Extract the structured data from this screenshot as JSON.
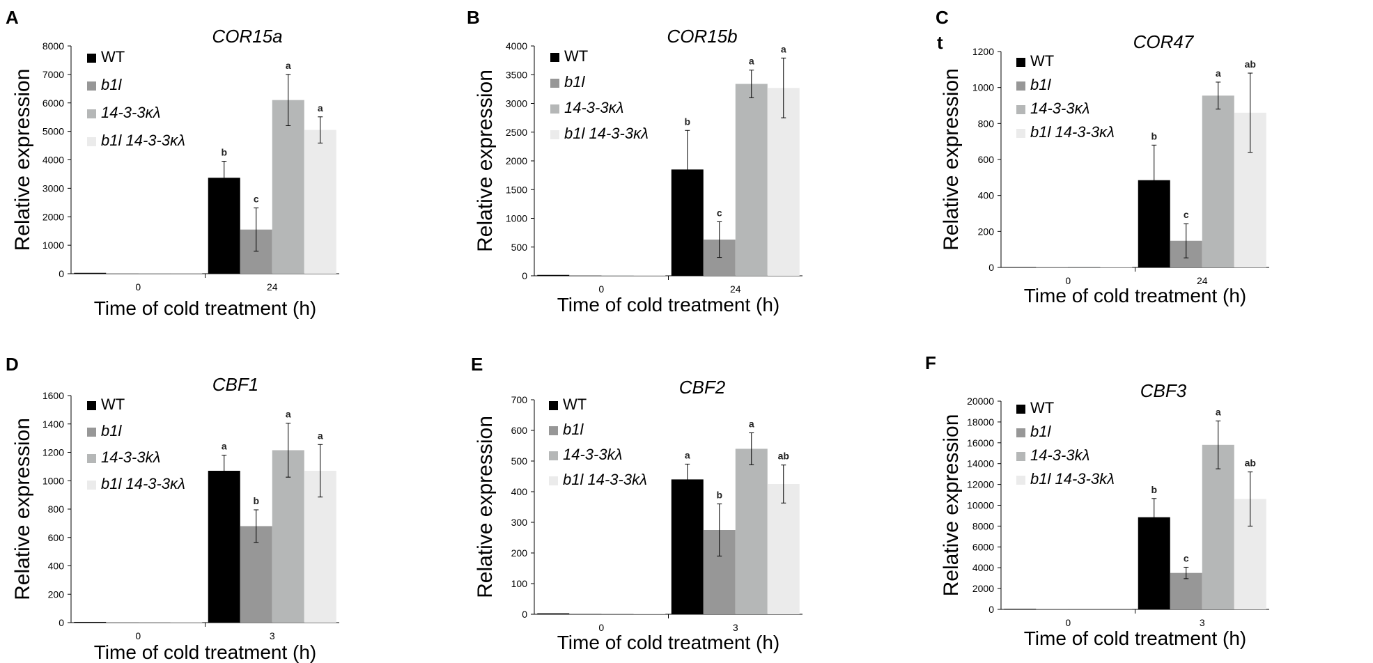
{
  "figure": {
    "legend_entries": [
      "WT",
      "b1l",
      "14-3-3κλ",
      "b1l 14-3-3κλ"
    ],
    "series_colors": [
      "#000000",
      "#979797",
      "#b5b7b7",
      "#ebebeb"
    ],
    "ylabel": "Relative expression",
    "xlabel": "Time of cold treatment (h)"
  },
  "chart_data": [
    {
      "panel": "A",
      "type": "bar",
      "title": "COR15a",
      "categories": [
        "0",
        "24"
      ],
      "ylim": [
        0,
        8000
      ],
      "yticks": [
        0,
        1000,
        2000,
        3000,
        4000,
        5000,
        6000,
        7000,
        8000
      ],
      "legend": [
        "WT",
        "b1l",
        "14-3-3κλ",
        "b1l 14-3-3κλ"
      ],
      "xlabel": "Time of cold treatment (h)",
      "ylabel": "Relative expression",
      "series": [
        {
          "name": "WT",
          "values": [
            30,
            3370
          ],
          "errors": [
            0,
            580
          ],
          "labels": [
            "",
            "b"
          ]
        },
        {
          "name": "b1l",
          "values": [
            15,
            1550
          ],
          "errors": [
            0,
            760
          ],
          "labels": [
            "",
            "c"
          ]
        },
        {
          "name": "14-3-3κλ",
          "values": [
            10,
            6100
          ],
          "errors": [
            0,
            900
          ],
          "labels": [
            "",
            "a"
          ]
        },
        {
          "name": "b1l 14-3-3κλ",
          "values": [
            8,
            5050
          ],
          "errors": [
            0,
            460
          ],
          "labels": [
            "",
            "a"
          ]
        }
      ]
    },
    {
      "panel": "B",
      "type": "bar",
      "title": "COR15b",
      "categories": [
        "0",
        "24"
      ],
      "ylim": [
        0,
        4000
      ],
      "yticks": [
        0,
        500,
        1000,
        1500,
        2000,
        2500,
        3000,
        3500,
        4000
      ],
      "legend": [
        "WT",
        "b1l",
        "14-3-3κλ",
        "b1l 14-3-3κλ"
      ],
      "xlabel": "Time of cold treatment (h)",
      "ylabel": "Relative expression",
      "series": [
        {
          "name": "WT",
          "values": [
            15,
            1850
          ],
          "errors": [
            0,
            680
          ],
          "labels": [
            "",
            "b"
          ]
        },
        {
          "name": "b1l",
          "values": [
            10,
            630
          ],
          "errors": [
            0,
            310
          ],
          "labels": [
            "",
            "c"
          ]
        },
        {
          "name": "14-3-3κλ",
          "values": [
            8,
            3340
          ],
          "errors": [
            0,
            240
          ],
          "labels": [
            "",
            "a"
          ]
        },
        {
          "name": "b1l 14-3-3κλ",
          "values": [
            5,
            3270
          ],
          "errors": [
            0,
            520
          ],
          "labels": [
            "",
            "a"
          ]
        }
      ]
    },
    {
      "panel": "C",
      "panel_note": "t",
      "type": "bar",
      "title": "COR47",
      "categories": [
        "0",
        "24"
      ],
      "ylim": [
        0,
        1200
      ],
      "yticks": [
        0,
        200,
        400,
        600,
        800,
        1000,
        1200
      ],
      "legend": [
        "WT",
        "b1l",
        "14-3-3κλ",
        "b1l 14-3-3κλ"
      ],
      "xlabel": "Time of cold treatment (h)",
      "ylabel": "Relative expression",
      "series": [
        {
          "name": "WT",
          "values": [
            2,
            485
          ],
          "errors": [
            0,
            195
          ],
          "labels": [
            "",
            "b"
          ]
        },
        {
          "name": "b1l",
          "values": [
            2,
            148
          ],
          "errors": [
            0,
            95
          ],
          "labels": [
            "",
            "c"
          ]
        },
        {
          "name": "14-3-3κλ",
          "values": [
            4,
            955
          ],
          "errors": [
            0,
            75
          ],
          "labels": [
            "",
            "a"
          ]
        },
        {
          "name": "b1l 14-3-3κλ",
          "values": [
            2,
            860
          ],
          "errors": [
            0,
            220
          ],
          "labels": [
            "",
            "ab"
          ]
        }
      ]
    },
    {
      "panel": "D",
      "type": "bar",
      "title": "CBF1",
      "categories": [
        "0",
        "3"
      ],
      "ylim": [
        0,
        1600
      ],
      "yticks": [
        0,
        200,
        400,
        600,
        800,
        1000,
        1200,
        1400,
        1600
      ],
      "legend": [
        "WT",
        "b1l",
        "14-3-3kλ",
        "b1l 14-3-3κλ"
      ],
      "xlabel": "Time of cold treatment (h)",
      "ylabel": "Relative expression",
      "series": [
        {
          "name": "WT",
          "values": [
            5,
            1070
          ],
          "errors": [
            0,
            110
          ],
          "labels": [
            "",
            "a"
          ]
        },
        {
          "name": "b1l",
          "values": [
            3,
            680
          ],
          "errors": [
            0,
            115
          ],
          "labels": [
            "",
            "b"
          ]
        },
        {
          "name": "14-3-3kλ",
          "values": [
            2,
            1215
          ],
          "errors": [
            0,
            190
          ],
          "labels": [
            "",
            "a"
          ]
        },
        {
          "name": "b1l 14-3-3κλ",
          "values": [
            2,
            1070
          ],
          "errors": [
            0,
            185
          ],
          "labels": [
            "",
            "a"
          ]
        }
      ]
    },
    {
      "panel": "E",
      "type": "bar",
      "title": "CBF2",
      "categories": [
        "0",
        "3"
      ],
      "ylim": [
        0,
        700
      ],
      "yticks": [
        0,
        100,
        200,
        300,
        400,
        500,
        600,
        700
      ],
      "legend": [
        "WT",
        "b1l",
        "14-3-3kλ",
        "b1l 14-3-3kλ"
      ],
      "xlabel": "Time of cold treatment (h)",
      "ylabel": "Relative expression",
      "series": [
        {
          "name": "WT",
          "values": [
            3,
            440
          ],
          "errors": [
            0,
            50
          ],
          "labels": [
            "",
            "a"
          ]
        },
        {
          "name": "b1l",
          "values": [
            2,
            275
          ],
          "errors": [
            0,
            85
          ],
          "labels": [
            "",
            "b"
          ]
        },
        {
          "name": "14-3-3kλ",
          "values": [
            2,
            540
          ],
          "errors": [
            0,
            52
          ],
          "labels": [
            "",
            "a"
          ]
        },
        {
          "name": "b1l 14-3-3kλ",
          "values": [
            1,
            425
          ],
          "errors": [
            0,
            62
          ],
          "labels": [
            "",
            "ab"
          ]
        }
      ]
    },
    {
      "panel": "F",
      "type": "bar",
      "title": "CBF3",
      "categories": [
        "0",
        "3"
      ],
      "ylim": [
        0,
        20000
      ],
      "yticks": [
        0,
        2000,
        4000,
        6000,
        8000,
        10000,
        12000,
        14000,
        16000,
        18000,
        20000
      ],
      "legend": [
        "WT",
        "b1l",
        "14-3-3kλ",
        "b1l 14-3-3kλ"
      ],
      "xlabel": "Time of cold treatment (h)",
      "ylabel": "Relative expression",
      "series": [
        {
          "name": "WT",
          "values": [
            50,
            8850
          ],
          "errors": [
            0,
            1800
          ],
          "labels": [
            "",
            "b"
          ]
        },
        {
          "name": "b1l",
          "values": [
            20,
            3500
          ],
          "errors": [
            0,
            550
          ],
          "labels": [
            "",
            "c"
          ]
        },
        {
          "name": "14-3-3kλ",
          "values": [
            15,
            15800
          ],
          "errors": [
            0,
            2300
          ],
          "labels": [
            "",
            "a"
          ]
        },
        {
          "name": "b1l 14-3-3kλ",
          "values": [
            10,
            10600
          ],
          "errors": [
            0,
            2600
          ],
          "labels": [
            "",
            "ab"
          ]
        }
      ]
    }
  ]
}
